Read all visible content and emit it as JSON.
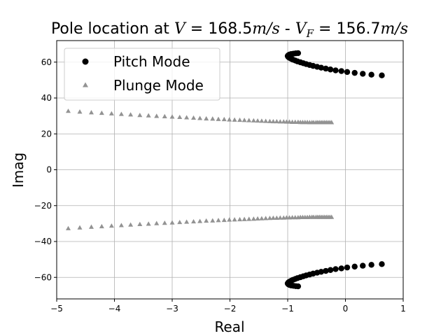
{
  "chart_data": {
    "type": "scatter",
    "title": {
      "prefix": "Pole location at ",
      "v_symbol": "V",
      "v_value": " = 168.5",
      "v_unit": "m/s",
      "sep": " - ",
      "vf_symbol": "V",
      "vf_sub": "F",
      "vf_value": " = 156.7",
      "vf_unit": "m/s"
    },
    "xlabel": "Real",
    "ylabel": "Imag",
    "xlim": [
      -5,
      1
    ],
    "ylim": [
      -72,
      72
    ],
    "xticks": [
      -5,
      -4,
      -3,
      -2,
      -1,
      0,
      1
    ],
    "yticks": [
      -60,
      -40,
      -20,
      0,
      20,
      40,
      60
    ],
    "xtick_labels": [
      "−5",
      "−4",
      "−3",
      "−2",
      "−1",
      "0",
      "1"
    ],
    "ytick_labels": [
      "−60",
      "−40",
      "−20",
      "0",
      "20",
      "40",
      "60"
    ],
    "grid": true,
    "legend_position": "top-left",
    "series": [
      {
        "name": "Pitch Mode",
        "marker": "circle",
        "color": "#000000",
        "points": [
          [
            0.63,
            52.6
          ],
          [
            0.45,
            53.0
          ],
          [
            0.3,
            53.5
          ],
          [
            0.16,
            54.0
          ],
          [
            0.03,
            54.5
          ],
          [
            -0.07,
            55.0
          ],
          [
            -0.17,
            55.4
          ],
          [
            -0.26,
            55.9
          ],
          [
            -0.34,
            56.4
          ],
          [
            -0.42,
            56.9
          ],
          [
            -0.49,
            57.4
          ],
          [
            -0.56,
            57.9
          ],
          [
            -0.62,
            58.4
          ],
          [
            -0.68,
            58.9
          ],
          [
            -0.73,
            59.4
          ],
          [
            -0.78,
            59.9
          ],
          [
            -0.83,
            60.4
          ],
          [
            -0.87,
            60.9
          ],
          [
            -0.91,
            61.4
          ],
          [
            -0.94,
            61.9
          ],
          [
            -0.97,
            62.4
          ],
          [
            -0.99,
            62.9
          ],
          [
            -1.0,
            63.4
          ],
          [
            -0.99,
            63.8
          ],
          [
            -0.97,
            64.2
          ],
          [
            -0.94,
            64.5
          ],
          [
            -0.9,
            64.7
          ],
          [
            -0.86,
            64.9
          ],
          [
            -0.82,
            65.0
          ],
          [
            0.63,
            -52.6
          ],
          [
            0.45,
            -53.0
          ],
          [
            0.3,
            -53.5
          ],
          [
            0.16,
            -54.0
          ],
          [
            0.03,
            -54.5
          ],
          [
            -0.07,
            -55.0
          ],
          [
            -0.17,
            -55.4
          ],
          [
            -0.26,
            -55.9
          ],
          [
            -0.34,
            -56.4
          ],
          [
            -0.42,
            -56.9
          ],
          [
            -0.49,
            -57.4
          ],
          [
            -0.56,
            -57.9
          ],
          [
            -0.62,
            -58.4
          ],
          [
            -0.68,
            -58.9
          ],
          [
            -0.73,
            -59.4
          ],
          [
            -0.78,
            -59.9
          ],
          [
            -0.83,
            -60.4
          ],
          [
            -0.87,
            -60.9
          ],
          [
            -0.91,
            -61.4
          ],
          [
            -0.94,
            -61.9
          ],
          [
            -0.97,
            -62.4
          ],
          [
            -0.99,
            -62.9
          ],
          [
            -1.0,
            -63.4
          ],
          [
            -0.99,
            -63.8
          ],
          [
            -0.97,
            -64.2
          ],
          [
            -0.94,
            -64.5
          ],
          [
            -0.9,
            -64.7
          ],
          [
            -0.86,
            -64.9
          ],
          [
            -0.82,
            -65.0
          ]
        ]
      },
      {
        "name": "Plunge Mode",
        "marker": "triangle",
        "color": "#939393",
        "points": [
          [
            -4.8,
            32.7
          ],
          [
            -4.6,
            32.3
          ],
          [
            -4.4,
            31.9
          ],
          [
            -4.22,
            31.6
          ],
          [
            -4.05,
            31.3
          ],
          [
            -3.88,
            31.0
          ],
          [
            -3.72,
            30.7
          ],
          [
            -3.56,
            30.4
          ],
          [
            -3.41,
            30.2
          ],
          [
            -3.27,
            29.9
          ],
          [
            -3.13,
            29.7
          ],
          [
            -3.0,
            29.5
          ],
          [
            -2.87,
            29.3
          ],
          [
            -2.75,
            29.1
          ],
          [
            -2.63,
            28.9
          ],
          [
            -2.52,
            28.7
          ],
          [
            -2.41,
            28.5
          ],
          [
            -2.3,
            28.4
          ],
          [
            -2.2,
            28.2
          ],
          [
            -2.1,
            28.1
          ],
          [
            -2.01,
            27.9
          ],
          [
            -1.92,
            27.8
          ],
          [
            -1.83,
            27.7
          ],
          [
            -1.75,
            27.6
          ],
          [
            -1.67,
            27.5
          ],
          [
            -1.59,
            27.4
          ],
          [
            -1.52,
            27.3
          ],
          [
            -1.45,
            27.2
          ],
          [
            -1.38,
            27.1
          ],
          [
            -1.31,
            27.0
          ],
          [
            -1.25,
            26.9
          ],
          [
            -1.19,
            26.9
          ],
          [
            -1.13,
            26.8
          ],
          [
            -1.07,
            26.8
          ],
          [
            -1.02,
            26.7
          ],
          [
            -0.97,
            26.7
          ],
          [
            -0.92,
            26.6
          ],
          [
            -0.87,
            26.6
          ],
          [
            -0.82,
            26.6
          ],
          [
            -0.78,
            26.5
          ],
          [
            -0.74,
            26.5
          ],
          [
            -0.7,
            26.5
          ],
          [
            -0.66,
            26.5
          ],
          [
            -0.62,
            26.4
          ],
          [
            -0.58,
            26.4
          ],
          [
            -0.55,
            26.4
          ],
          [
            -0.51,
            26.4
          ],
          [
            -0.48,
            26.4
          ],
          [
            -0.45,
            26.4
          ],
          [
            -0.42,
            26.4
          ],
          [
            -0.39,
            26.4
          ],
          [
            -0.36,
            26.4
          ],
          [
            -0.33,
            26.4
          ],
          [
            -0.3,
            26.4
          ],
          [
            -0.27,
            26.4
          ],
          [
            -0.24,
            26.4
          ],
          [
            -4.8,
            -32.7
          ],
          [
            -4.6,
            -32.3
          ],
          [
            -4.4,
            -31.9
          ],
          [
            -4.22,
            -31.6
          ],
          [
            -4.05,
            -31.3
          ],
          [
            -3.88,
            -31.0
          ],
          [
            -3.72,
            -30.7
          ],
          [
            -3.56,
            -30.4
          ],
          [
            -3.41,
            -30.2
          ],
          [
            -3.27,
            -29.9
          ],
          [
            -3.13,
            -29.7
          ],
          [
            -3.0,
            -29.5
          ],
          [
            -2.87,
            -29.3
          ],
          [
            -2.75,
            -29.1
          ],
          [
            -2.63,
            -28.9
          ],
          [
            -2.52,
            -28.7
          ],
          [
            -2.41,
            -28.5
          ],
          [
            -2.3,
            -28.4
          ],
          [
            -2.2,
            -28.2
          ],
          [
            -2.1,
            -28.1
          ],
          [
            -2.01,
            -27.9
          ],
          [
            -1.92,
            -27.8
          ],
          [
            -1.83,
            -27.7
          ],
          [
            -1.75,
            -27.6
          ],
          [
            -1.67,
            -27.5
          ],
          [
            -1.59,
            -27.4
          ],
          [
            -1.52,
            -27.3
          ],
          [
            -1.45,
            -27.2
          ],
          [
            -1.38,
            -27.1
          ],
          [
            -1.31,
            -27.0
          ],
          [
            -1.25,
            -26.9
          ],
          [
            -1.19,
            -26.9
          ],
          [
            -1.13,
            -26.8
          ],
          [
            -1.07,
            -26.8
          ],
          [
            -1.02,
            -26.7
          ],
          [
            -0.97,
            -26.7
          ],
          [
            -0.92,
            -26.6
          ],
          [
            -0.87,
            -26.6
          ],
          [
            -0.82,
            -26.6
          ],
          [
            -0.78,
            -26.5
          ],
          [
            -0.74,
            -26.5
          ],
          [
            -0.7,
            -26.5
          ],
          [
            -0.66,
            -26.5
          ],
          [
            -0.62,
            -26.4
          ],
          [
            -0.58,
            -26.4
          ],
          [
            -0.55,
            -26.4
          ],
          [
            -0.51,
            -26.4
          ],
          [
            -0.48,
            -26.4
          ],
          [
            -0.45,
            -26.4
          ],
          [
            -0.42,
            -26.4
          ],
          [
            -0.39,
            -26.4
          ],
          [
            -0.36,
            -26.4
          ],
          [
            -0.33,
            -26.4
          ],
          [
            -0.3,
            -26.4
          ],
          [
            -0.27,
            -26.4
          ],
          [
            -0.24,
            -26.4
          ]
        ]
      }
    ]
  }
}
